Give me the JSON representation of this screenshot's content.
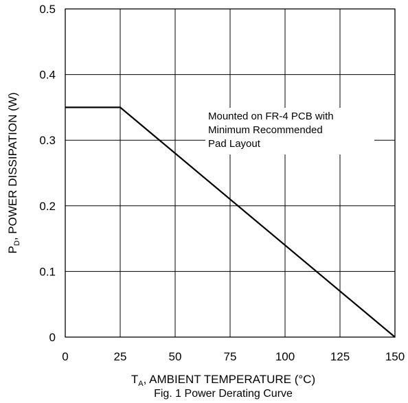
{
  "chart_data": {
    "type": "line",
    "title": "",
    "caption": "Fig. 1 Power Derating Curve",
    "xlabel": {
      "symbol": "T",
      "subscript": "A",
      "text": ", AMBIENT TEMPERATURE (°C)"
    },
    "ylabel": {
      "symbol": "P",
      "subscript": "D",
      "text": ", POWER DISSIPATION (W)"
    },
    "xlim": [
      0,
      150
    ],
    "ylim": [
      0,
      0.5
    ],
    "xticks": [
      "0",
      "25",
      "50",
      "75",
      "100",
      "125",
      "150"
    ],
    "xtick_values": [
      0,
      25,
      50,
      75,
      100,
      125,
      150
    ],
    "yticks": [
      "0",
      "0.1",
      "0.2",
      "0.3",
      "0.4",
      "0.5"
    ],
    "ytick_values": [
      0,
      0.1,
      0.2,
      0.3,
      0.4,
      0.5
    ],
    "grid": true,
    "series": [
      {
        "x": [
          0,
          25,
          150
        ],
        "y": [
          0.35,
          0.35,
          0
        ]
      }
    ],
    "annotation": {
      "lines": [
        "Mounted on FR-4 PCB with",
        "Minimum Recommended",
        "Pad Layout"
      ]
    }
  }
}
